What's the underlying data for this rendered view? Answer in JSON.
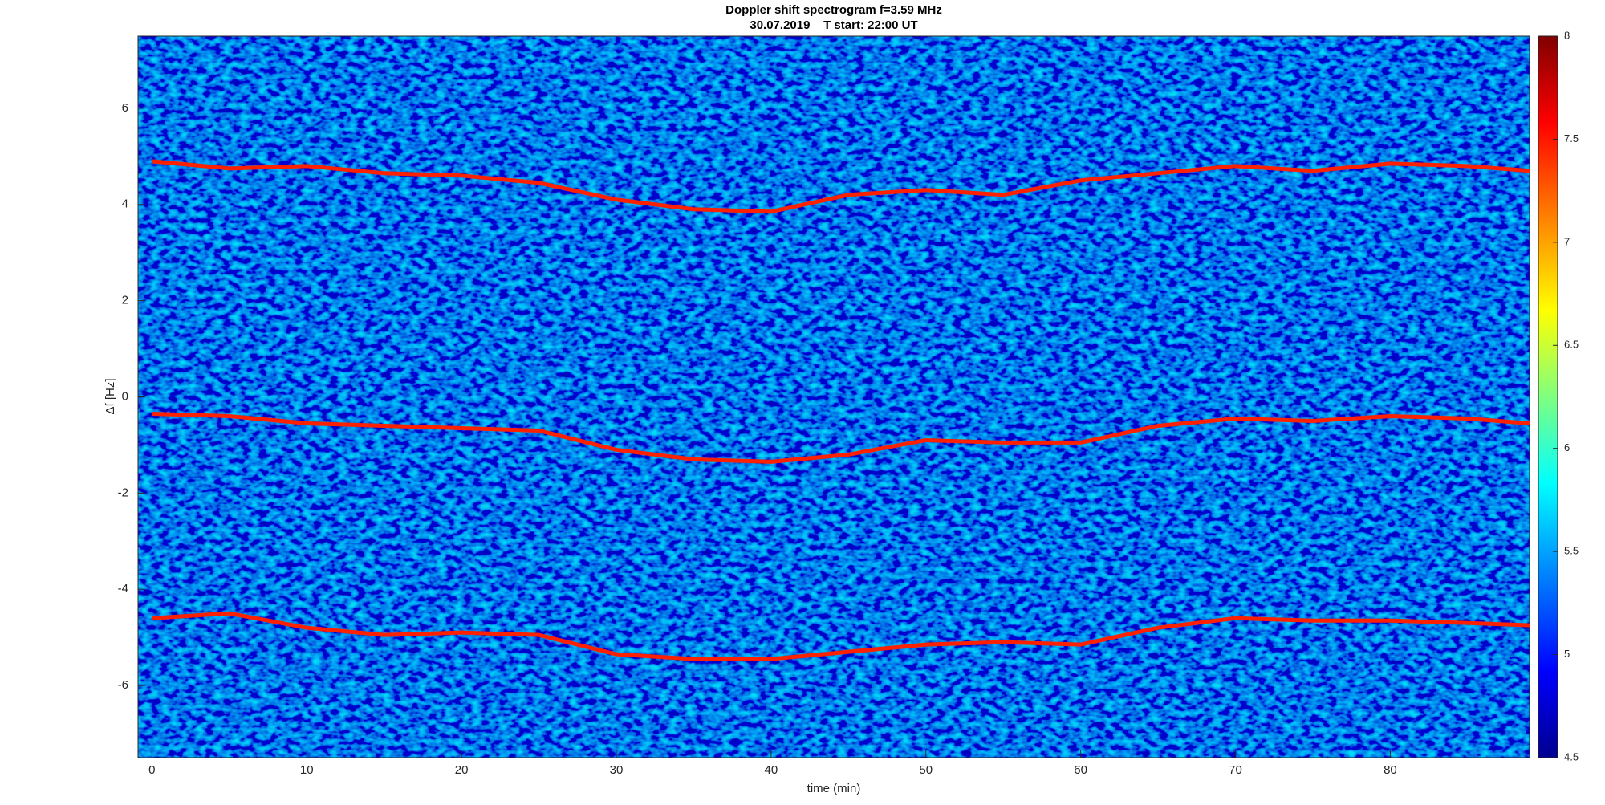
{
  "chart_data": {
    "type": "spectrogram",
    "title": "Doppler shift spectrogram f=3.59 MHz",
    "subtitle": "30.07.2019    T start: 22:00 UT",
    "x_label": "time (min)",
    "y_label": "Δf [Hz]",
    "xlim": [
      -0.9,
      89
    ],
    "ylim": [
      -7.5,
      7.5
    ],
    "xticks": [
      0,
      10,
      20,
      30,
      40,
      50,
      60,
      70,
      80
    ],
    "yticks": [
      -6,
      -4,
      -2,
      0,
      2,
      4,
      6
    ],
    "clim": [
      4.5,
      8
    ],
    "cticks": [
      4.5,
      5,
      5.5,
      6,
      6.5,
      7,
      7.5,
      8
    ],
    "x": [
      0,
      5,
      10,
      15,
      20,
      25,
      30,
      35,
      40,
      45,
      50,
      55,
      60,
      65,
      70,
      75,
      80,
      85,
      89
    ],
    "series": [
      {
        "color": "#ff2000",
        "values": [
          4.9,
          4.75,
          4.8,
          4.65,
          4.6,
          4.45,
          4.1,
          3.9,
          3.85,
          4.2,
          4.3,
          4.2,
          4.5,
          4.65,
          4.8,
          4.7,
          4.85,
          4.8,
          4.7
        ]
      },
      {
        "color": "#ff2000",
        "values": [
          -0.35,
          -0.4,
          -0.55,
          -0.6,
          -0.65,
          -0.7,
          -1.1,
          -1.3,
          -1.35,
          -1.2,
          -0.9,
          -0.95,
          -0.95,
          -0.6,
          -0.45,
          -0.5,
          -0.4,
          -0.45,
          -0.55
        ]
      },
      {
        "color": "#ff2000",
        "values": [
          -4.6,
          -4.5,
          -4.8,
          -4.95,
          -4.9,
          -4.95,
          -5.35,
          -5.45,
          -5.45,
          -5.3,
          -5.15,
          -5.1,
          -5.15,
          -4.8,
          -4.6,
          -4.65,
          -4.65,
          -4.7,
          -4.75
        ]
      }
    ]
  }
}
